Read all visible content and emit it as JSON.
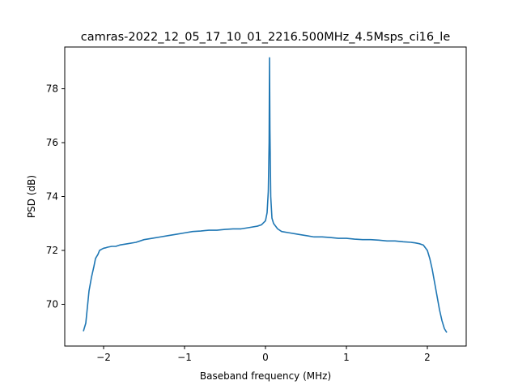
{
  "chart_data": {
    "type": "line",
    "title": "camras-2022_12_05_17_10_01_2216.500MHz_4.5Msps_ci16_le",
    "xlabel": "Baseband frequency (MHz)",
    "ylabel": "PSD (dB)",
    "xlim": [
      -2.48,
      2.48
    ],
    "ylim": [
      68.45,
      79.55
    ],
    "xticks": [
      -2,
      -1,
      0,
      1,
      2
    ],
    "xtick_labels": [
      "−2",
      "−1",
      "0",
      "1",
      "2"
    ],
    "yticks": [
      70,
      72,
      74,
      76,
      78
    ],
    "ytick_labels": [
      "70",
      "72",
      "74",
      "76",
      "78"
    ],
    "grid": false,
    "line_color": "#1f77b4",
    "series": [
      {
        "x": [
          -2.25,
          -2.22,
          -2.2,
          -2.18,
          -2.15,
          -2.12,
          -2.1,
          -2.07,
          -2.05,
          -2.02,
          -2.0,
          -1.97,
          -1.95,
          -1.9,
          -1.85,
          -1.8,
          -1.7,
          -1.6,
          -1.5,
          -1.4,
          -1.3,
          -1.2,
          -1.1,
          -1.0,
          -0.9,
          -0.8,
          -0.7,
          -0.6,
          -0.5,
          -0.4,
          -0.3,
          -0.2,
          -0.1,
          -0.05,
          0.0,
          0.02,
          0.035,
          0.045,
          0.05,
          0.055,
          0.065,
          0.08,
          0.1,
          0.15,
          0.2,
          0.3,
          0.4,
          0.5,
          0.6,
          0.7,
          0.8,
          0.9,
          1.0,
          1.1,
          1.2,
          1.3,
          1.4,
          1.5,
          1.6,
          1.7,
          1.8,
          1.85,
          1.9,
          1.95,
          2.0,
          2.03,
          2.06,
          2.09,
          2.12,
          2.15,
          2.18,
          2.21,
          2.24
        ],
        "y": [
          69.0,
          69.3,
          69.9,
          70.5,
          71.0,
          71.4,
          71.7,
          71.85,
          72.0,
          72.05,
          72.08,
          72.1,
          72.12,
          72.15,
          72.15,
          72.2,
          72.25,
          72.3,
          72.4,
          72.45,
          72.5,
          72.55,
          72.6,
          72.65,
          72.7,
          72.72,
          72.75,
          72.75,
          72.78,
          72.8,
          72.8,
          72.85,
          72.9,
          72.95,
          73.1,
          73.4,
          74.2,
          76.0,
          79.15,
          76.5,
          74.0,
          73.2,
          73.0,
          72.8,
          72.7,
          72.65,
          72.6,
          72.55,
          72.5,
          72.5,
          72.48,
          72.45,
          72.45,
          72.42,
          72.4,
          72.4,
          72.38,
          72.35,
          72.35,
          72.32,
          72.3,
          72.28,
          72.25,
          72.2,
          72.0,
          71.7,
          71.3,
          70.8,
          70.3,
          69.8,
          69.4,
          69.1,
          68.95
        ]
      }
    ]
  }
}
